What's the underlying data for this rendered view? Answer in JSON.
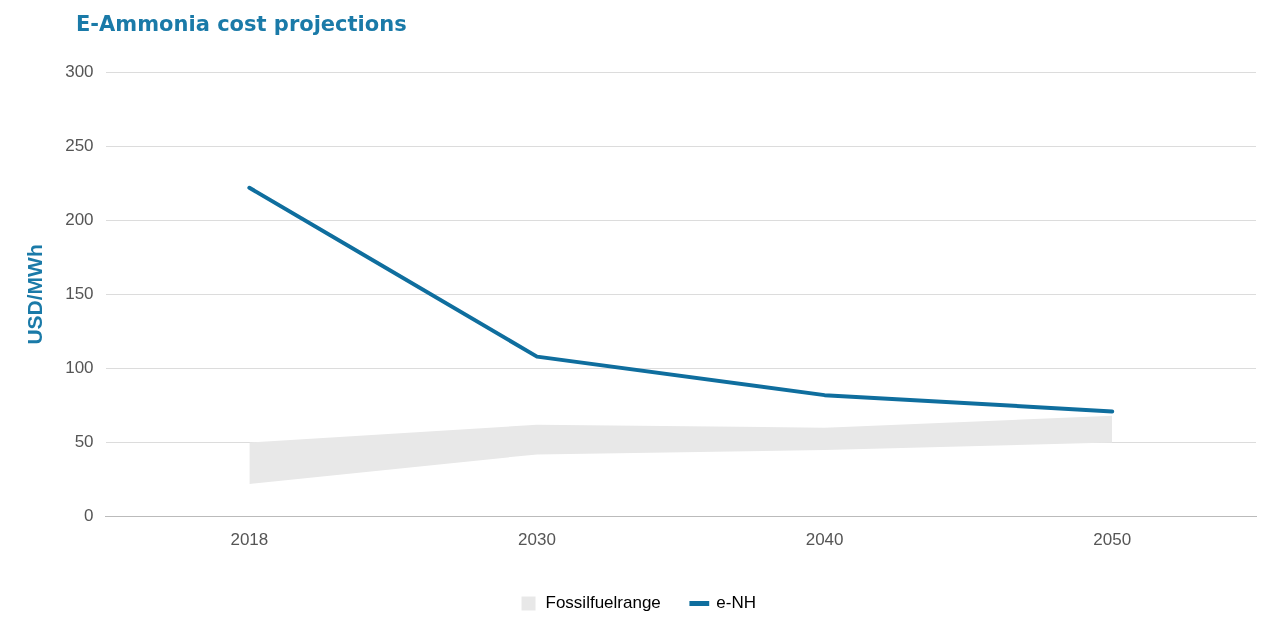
{
  "chart_data": {
    "type": "line",
    "title": "E-Ammonia cost projections",
    "ylabel": "USD/MWh",
    "categories": [
      "2018",
      "2030",
      "2040",
      "2050"
    ],
    "series": [
      {
        "name": "Fossilfuelrange",
        "type": "area",
        "color": "#e8e8e8",
        "values": [
          null,
          null,
          null,
          null
        ],
        "lower": [
          22,
          42,
          45,
          50
        ],
        "upper": [
          50,
          62,
          60,
          68
        ]
      },
      {
        "name": "e-NH",
        "type": "line",
        "color": "#0f6e9e",
        "values": [
          222,
          108,
          82,
          71
        ]
      }
    ],
    "ylim": [
      0,
      300
    ],
    "yticks": [
      0,
      50,
      100,
      150,
      200,
      250,
      300
    ],
    "grid": "y",
    "legend": "bottom",
    "marker": "none",
    "line_style": "solid"
  }
}
